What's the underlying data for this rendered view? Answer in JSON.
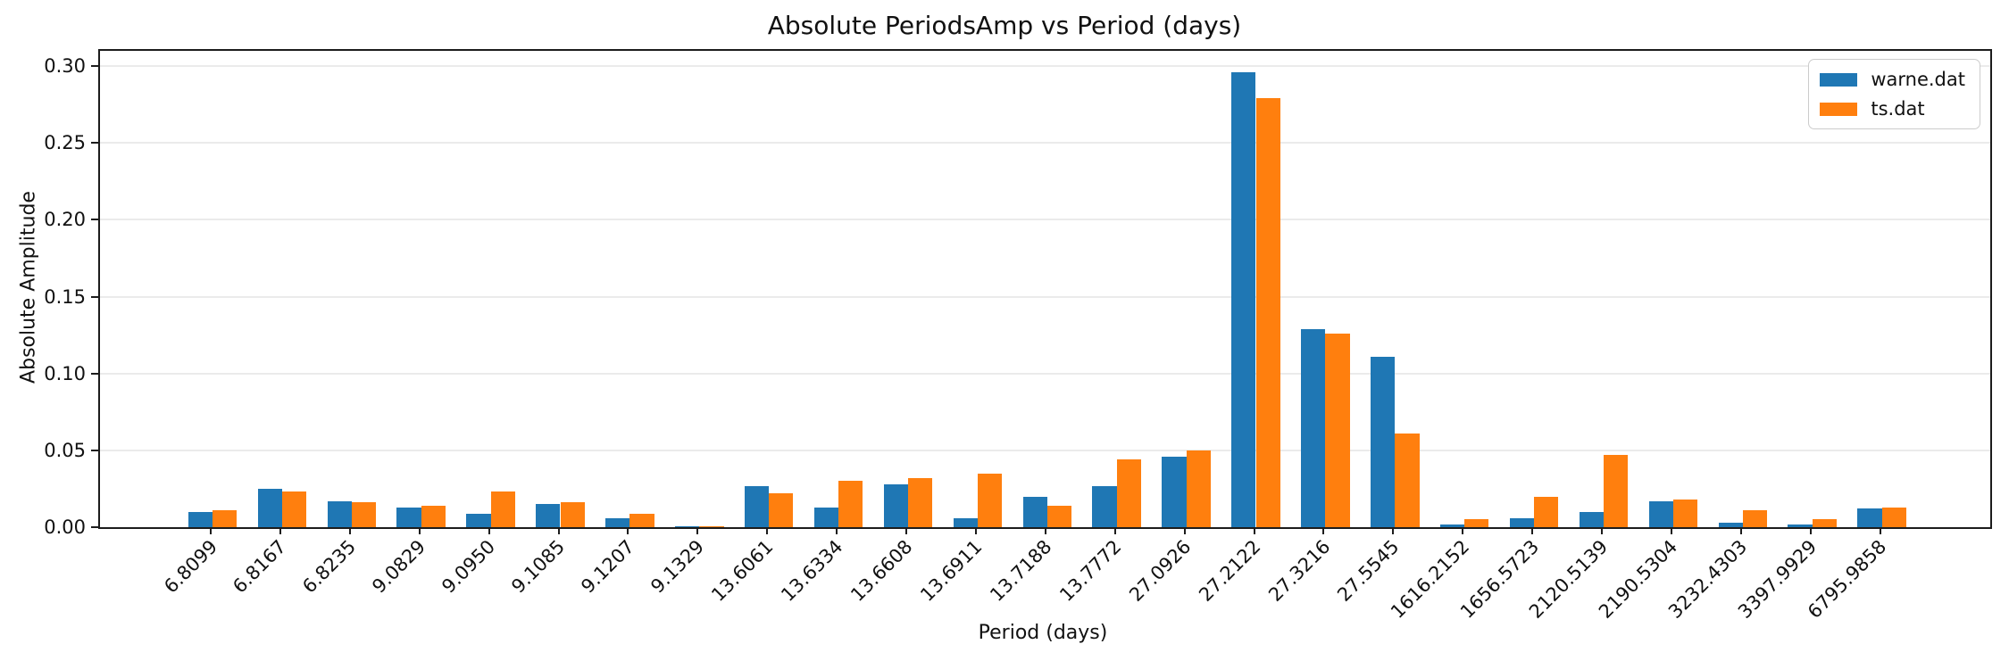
{
  "figure": {
    "title": "Absolute PeriodsAmp vs Period (days)",
    "xlabel": "Period (days)",
    "ylabel": "Absolute Amplitude"
  },
  "chart_data": {
    "type": "bar",
    "title": "Absolute PeriodsAmp vs Period (days)",
    "xlabel": "Period (days)",
    "ylabel": "Absolute Amplitude",
    "categories": [
      "6.8099",
      "6.8167",
      "6.8235",
      "9.0829",
      "9.0950",
      "9.1085",
      "9.1207",
      "9.1329",
      "13.6061",
      "13.6334",
      "13.6608",
      "13.6911",
      "13.7188",
      "13.7772",
      "27.0926",
      "27.2122",
      "27.3216",
      "27.5545",
      "1616.2152",
      "1656.5723",
      "2120.5139",
      "2190.5304",
      "3232.4303",
      "3397.9929",
      "6795.9858"
    ],
    "series": [
      {
        "name": "warne.dat",
        "color": "#1f77b4",
        "values": [
          0.01,
          0.025,
          0.017,
          0.013,
          0.009,
          0.015,
          0.006,
          0.0005,
          0.027,
          0.013,
          0.028,
          0.006,
          0.02,
          0.027,
          0.046,
          0.296,
          0.129,
          0.111,
          0.002,
          0.006,
          0.01,
          0.017,
          0.003,
          0.002,
          0.012
        ]
      },
      {
        "name": "ts.dat",
        "color": "#ff7f0e",
        "values": [
          0.011,
          0.023,
          0.016,
          0.014,
          0.023,
          0.016,
          0.009,
          0.0005,
          0.022,
          0.03,
          0.032,
          0.035,
          0.014,
          0.044,
          0.05,
          0.279,
          0.126,
          0.061,
          0.005,
          0.02,
          0.047,
          0.018,
          0.011,
          0.005,
          0.013
        ]
      }
    ],
    "ylim": [
      0,
      0.31
    ],
    "yticks": [
      0.0,
      0.05,
      0.1,
      0.15,
      0.2,
      0.25,
      0.3
    ],
    "ytick_labels": [
      "0.00",
      "0.05",
      "0.10",
      "0.15",
      "0.20",
      "0.25",
      "0.30"
    ],
    "grid": true,
    "legend_position": "upper right",
    "bar_group_width_fraction": 0.7
  },
  "colors": {
    "series_blue": "#1f77b4",
    "series_orange": "#ff7f0e",
    "gridline": "#ebebeb",
    "spine": "#1c1c1c",
    "legend_border": "#cccccc",
    "background": "#ffffff"
  }
}
